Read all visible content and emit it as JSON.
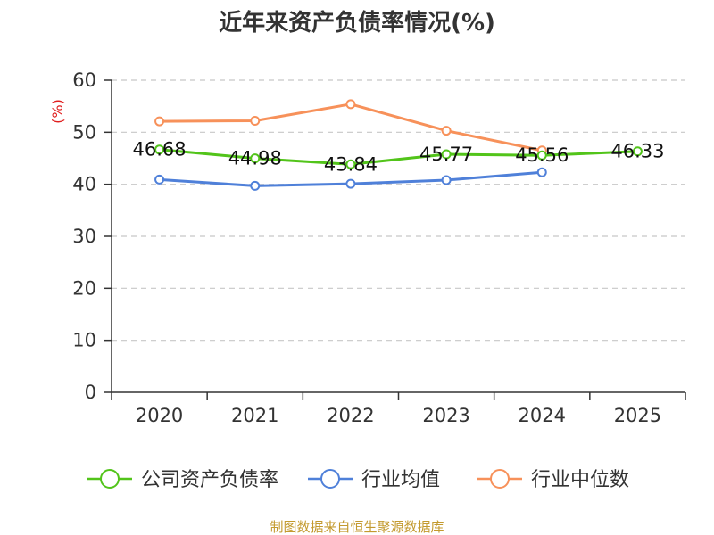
{
  "chart_data": {
    "type": "line",
    "title": "近年来资产负债率情况(%)",
    "ylabel": "(%)",
    "xlabel": "",
    "categories": [
      "2020",
      "2021",
      "2022",
      "2023",
      "2024",
      "2025"
    ],
    "ylim": [
      0,
      60
    ],
    "yticks": [
      0,
      10,
      20,
      30,
      40,
      50,
      60
    ],
    "grid": true,
    "legend_position": "bottom",
    "series": [
      {
        "name": "公司资产负债率",
        "color": "#52c41a",
        "values": [
          46.68,
          44.98,
          43.84,
          45.77,
          45.56,
          46.33
        ],
        "show_labels": true
      },
      {
        "name": "行业均值",
        "color": "#4f80d9",
        "values": [
          40.9,
          39.7,
          40.1,
          40.8,
          42.3,
          null
        ],
        "show_labels": false
      },
      {
        "name": "行业中位数",
        "color": "#f7915a",
        "values": [
          52.1,
          52.2,
          55.4,
          50.3,
          46.5,
          null
        ],
        "show_labels": false
      }
    ]
  },
  "footer": {
    "source": "制图数据来自恒生聚源数据库"
  }
}
